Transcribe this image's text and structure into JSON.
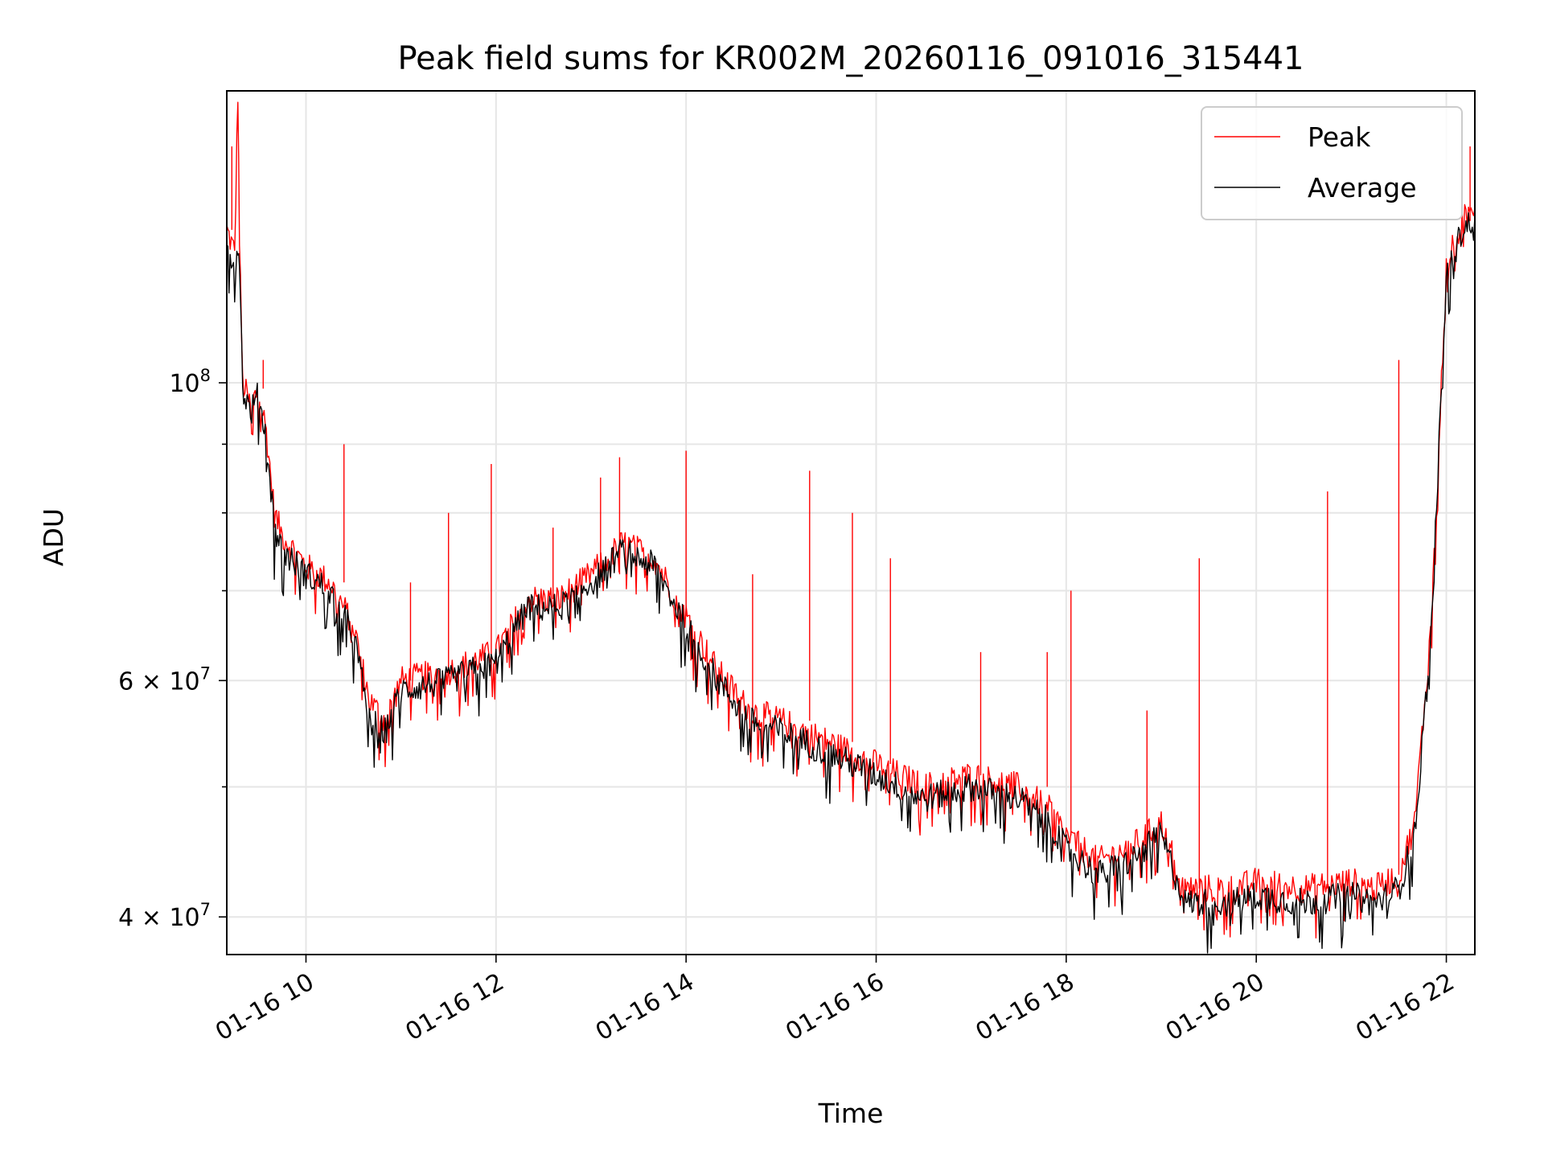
{
  "chart_data": {
    "type": "line",
    "title": "Peak field sums for KR002M_20260116_091016_315441",
    "xlabel": "Time",
    "ylabel": "ADU",
    "yscale": "log",
    "ylim": [
      37500000,
      165000000
    ],
    "xlim": [
      "2026-01-16 09:10",
      "2026-01-16 22:18"
    ],
    "grid": true,
    "legend_position": "upper right",
    "x_ticks": [
      "01-16 10",
      "01-16 12",
      "01-16 14",
      "01-16 16",
      "01-16 18",
      "01-16 20",
      "01-16 22"
    ],
    "y_ticks": [
      {
        "value": 40000000,
        "mantissa": "4",
        "exp": "7"
      },
      {
        "value": 60000000,
        "mantissa": "6",
        "exp": "7"
      },
      {
        "value": 100000000,
        "mantissa": "",
        "exp": "8"
      }
    ],
    "series": [
      {
        "name": "Peak",
        "color": "#ff0000",
        "x": [
          "2026-01-16 09:10",
          "2026-01-16 09:15",
          "2026-01-16 09:17",
          "2026-01-16 09:18",
          "2026-01-16 09:20",
          "2026-01-16 09:25",
          "2026-01-16 09:30",
          "2026-01-16 09:35",
          "2026-01-16 09:40",
          "2026-01-16 09:45",
          "2026-01-16 10:00",
          "2026-01-16 10:15",
          "2026-01-16 10:30",
          "2026-01-16 10:40",
          "2026-01-16 10:50",
          "2026-01-16 11:00",
          "2026-01-16 11:30",
          "2026-01-16 12:00",
          "2026-01-16 12:20",
          "2026-01-16 12:40",
          "2026-01-16 13:00",
          "2026-01-16 13:20",
          "2026-01-16 13:40",
          "2026-01-16 14:00",
          "2026-01-16 14:20",
          "2026-01-16 14:40",
          "2026-01-16 15:00",
          "2026-01-16 15:30",
          "2026-01-16 16:00",
          "2026-01-16 16:30",
          "2026-01-16 17:00",
          "2026-01-16 17:30",
          "2026-01-16 17:50",
          "2026-01-16 18:00",
          "2026-01-16 18:20",
          "2026-01-16 18:40",
          "2026-01-16 19:00",
          "2026-01-16 19:15",
          "2026-01-16 19:30",
          "2026-01-16 19:45",
          "2026-01-16 20:00",
          "2026-01-16 20:30",
          "2026-01-16 21:00",
          "2026-01-16 21:15",
          "2026-01-16 21:30",
          "2026-01-16 21:40",
          "2026-01-16 21:50",
          "2026-01-16 22:00",
          "2026-01-16 22:10",
          "2026-01-16 22:18"
        ],
        "values": [
          130000000,
          125000000,
          165000000,
          128000000,
          100000000,
          96000000,
          99000000,
          92000000,
          80000000,
          77000000,
          73000000,
          71000000,
          66000000,
          58000000,
          56000000,
          60000000,
          61000000,
          63000000,
          69000000,
          69000000,
          72000000,
          76000000,
          74000000,
          67000000,
          61000000,
          57000000,
          56000000,
          54000000,
          52000000,
          50000000,
          51000000,
          50000000,
          48000000,
          46000000,
          44000000,
          45000000,
          47000000,
          42000000,
          42000000,
          42000000,
          42500000,
          42000000,
          42500000,
          42000000,
          43000000,
          47000000,
          65000000,
          122000000,
          132000000,
          135000000
        ]
      },
      {
        "name": "Average",
        "color": "#000000",
        "x": [
          "2026-01-16 09:10",
          "2026-01-16 09:15",
          "2026-01-16 09:17",
          "2026-01-16 09:18",
          "2026-01-16 09:20",
          "2026-01-16 09:25",
          "2026-01-16 09:30",
          "2026-01-16 09:35",
          "2026-01-16 09:40",
          "2026-01-16 09:45",
          "2026-01-16 10:00",
          "2026-01-16 10:15",
          "2026-01-16 10:30",
          "2026-01-16 10:40",
          "2026-01-16 10:50",
          "2026-01-16 11:00",
          "2026-01-16 11:30",
          "2026-01-16 12:00",
          "2026-01-16 12:20",
          "2026-01-16 12:40",
          "2026-01-16 13:00",
          "2026-01-16 13:20",
          "2026-01-16 13:40",
          "2026-01-16 14:00",
          "2026-01-16 14:20",
          "2026-01-16 14:40",
          "2026-01-16 15:00",
          "2026-01-16 15:30",
          "2026-01-16 16:00",
          "2026-01-16 16:30",
          "2026-01-16 17:00",
          "2026-01-16 17:30",
          "2026-01-16 17:50",
          "2026-01-16 18:00",
          "2026-01-16 18:20",
          "2026-01-16 18:40",
          "2026-01-16 19:00",
          "2026-01-16 19:15",
          "2026-01-16 19:30",
          "2026-01-16 19:45",
          "2026-01-16 20:00",
          "2026-01-16 20:30",
          "2026-01-16 21:00",
          "2026-01-16 21:15",
          "2026-01-16 21:30",
          "2026-01-16 21:40",
          "2026-01-16 21:50",
          "2026-01-16 22:00",
          "2026-01-16 22:10",
          "2026-01-16 22:18"
        ],
        "values": [
          128000000,
          122000000,
          126000000,
          125000000,
          99000000,
          95000000,
          98000000,
          91000000,
          78000000,
          75000000,
          72000000,
          70000000,
          65000000,
          56000000,
          55000000,
          59000000,
          60000000,
          62000000,
          68000000,
          68000000,
          71000000,
          75000000,
          73000000,
          66000000,
          60000000,
          56000000,
          55000000,
          53000000,
          51000000,
          49000000,
          50000000,
          49000000,
          47000000,
          45000000,
          43000000,
          44000000,
          46000000,
          41000000,
          41000000,
          41000000,
          41500000,
          41000000,
          41500000,
          41000000,
          42000000,
          46000000,
          64000000,
          120000000,
          130000000,
          133000000
        ]
      }
    ]
  }
}
